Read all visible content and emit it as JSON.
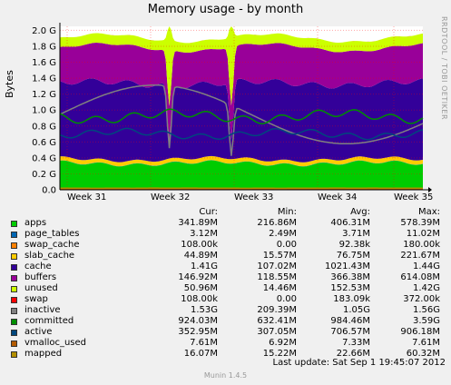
{
  "chart_data": {
    "type": "area",
    "title": "Memory usage - by month",
    "ylabel": "Bytes",
    "xlabel": "",
    "x_ticks": [
      "Week 31",
      "Week 32",
      "Week 33",
      "Week 34",
      "Week 35"
    ],
    "y_ticks": [
      "0.0",
      "0.2 G",
      "0.4 G",
      "0.6 G",
      "0.8 G",
      "1.0 G",
      "1.2 G",
      "1.4 G",
      "1.6 G",
      "1.8 G",
      "2.0 G"
    ],
    "ylim": [
      0,
      2.05
    ],
    "grid": true,
    "legend_position": "bottom",
    "columns": [
      "Cur:",
      "Min:",
      "Avg:",
      "Max:"
    ],
    "series": [
      {
        "name": "apps",
        "color": "#00cc00",
        "cur": "341.89M",
        "min": "216.86M",
        "avg": "406.31M",
        "max": "578.39M",
        "approx_value_g": 0.33
      },
      {
        "name": "page_tables",
        "color": "#0066b3",
        "cur": "3.12M",
        "min": "2.49M",
        "avg": "3.71M",
        "max": "11.02M",
        "approx_value_g": 0.003
      },
      {
        "name": "swap_cache",
        "color": "#ff8000",
        "cur": "108.00k",
        "min": "0.00",
        "avg": "92.38k",
        "max": "180.00k",
        "approx_value_g": 0.0001
      },
      {
        "name": "slab_cache",
        "color": "#ffcc00",
        "cur": "44.89M",
        "min": "15.57M",
        "avg": "76.75M",
        "max": "221.67M",
        "approx_value_g": 0.05
      },
      {
        "name": "cache",
        "color": "#330099",
        "cur": "1.41G",
        "min": "107.02M",
        "avg": "1021.43M",
        "max": "1.44G",
        "approx_value_g": 0.95
      },
      {
        "name": "buffers",
        "color": "#990099",
        "cur": "146.92M",
        "min": "118.55M",
        "avg": "366.38M",
        "max": "614.08M",
        "approx_value_g": 0.45
      },
      {
        "name": "unused",
        "color": "#ccff00",
        "cur": "50.96M",
        "min": "14.46M",
        "avg": "152.53M",
        "max": "1.42G",
        "approx_value_g": 0.12
      },
      {
        "name": "swap",
        "color": "#ff0000",
        "cur": "108.00k",
        "min": "0.00",
        "avg": "183.09k",
        "max": "372.00k",
        "approx_value_g": 0.0001
      },
      {
        "name": "inactive",
        "color": "#808080",
        "cur": "1.53G",
        "min": "209.39M",
        "avg": "1.05G",
        "max": "1.56G",
        "approx_value_g": 1.05
      },
      {
        "name": "committed",
        "color": "#008f00",
        "cur": "924.03M",
        "min": "632.41M",
        "avg": "984.46M",
        "max": "3.59G",
        "approx_value_g": 0.92
      },
      {
        "name": "active",
        "color": "#00487d",
        "cur": "352.95M",
        "min": "307.05M",
        "avg": "706.57M",
        "max": "906.18M",
        "approx_value_g": 0.7
      },
      {
        "name": "vmalloc_used",
        "color": "#b35a00",
        "cur": "7.61M",
        "min": "6.92M",
        "avg": "7.33M",
        "max": "7.61M",
        "approx_value_g": 0.007
      },
      {
        "name": "mapped",
        "color": "#b38f00",
        "cur": "16.07M",
        "min": "15.22M",
        "avg": "22.66M",
        "max": "60.32M",
        "approx_value_g": 0.02
      }
    ]
  },
  "side_text": "RRDTOOL / TOBI OETIKER",
  "last_update": "Last update:  Sat Sep  1 19:45:07 2012",
  "version": "Munin 1.4.5"
}
